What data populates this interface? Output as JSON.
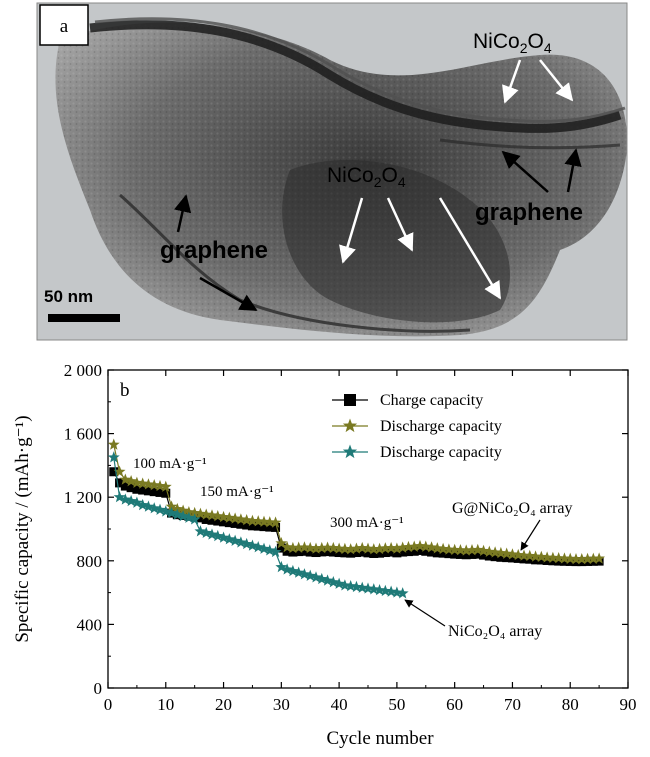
{
  "panel_a": {
    "panel_letter": "a",
    "labels": {
      "nico_top": "NiCo2O4",
      "nico_mid": "NiCo2O4",
      "graphene_left": "graphene",
      "graphene_right": "graphene"
    },
    "scale_bar_text": "50 nm"
  },
  "chart_data": {
    "type": "scatter",
    "panel_letter": "b",
    "xlabel": "Cycle number",
    "ylabel": "Specific capacity / (mAh·g⁻¹)",
    "xlim": [
      0,
      90
    ],
    "ylim": [
      0,
      2000
    ],
    "xticks": [
      "0",
      "10",
      "20",
      "30",
      "40",
      "50",
      "60",
      "70",
      "80",
      "90"
    ],
    "yticks": [
      "0",
      "400",
      "800",
      "1 200",
      "1 600",
      "2 000"
    ],
    "legend_position": "top-right",
    "legend": [
      {
        "label": "Charge capacity",
        "marker": "square",
        "color": "#000000"
      },
      {
        "label": "Discharge capacity",
        "marker": "star",
        "color": "#7a7a22"
      },
      {
        "label": "Discharge capacity",
        "marker": "star",
        "color": "#1f7a78"
      }
    ],
    "annotations": {
      "rate_100": "100 mA·g⁻¹",
      "rate_150": "150 mA·g⁻¹",
      "rate_300": "300 mA·g⁻¹",
      "g_array": "G@NiCo₂O₄ array",
      "n_array": "NiCo₂O₄ array"
    },
    "series": [
      {
        "name": "Charge capacity",
        "marker": "square",
        "color": "#000000",
        "x": [
          1,
          2,
          3,
          4,
          5,
          6,
          7,
          8,
          9,
          10,
          11,
          12,
          13,
          14,
          15,
          16,
          17,
          18,
          19,
          20,
          21,
          22,
          23,
          24,
          25,
          26,
          27,
          28,
          29,
          30,
          31,
          32,
          33,
          34,
          35,
          36,
          37,
          38,
          39,
          40,
          41,
          42,
          43,
          44,
          45,
          46,
          47,
          48,
          49,
          50,
          51,
          52,
          53,
          54,
          55,
          56,
          57,
          58,
          59,
          60,
          61,
          62,
          63,
          64,
          65,
          66,
          67,
          68,
          69,
          70,
          71,
          72,
          73,
          74,
          75,
          76,
          77,
          78,
          79,
          80,
          81,
          82,
          83,
          84,
          85
        ],
        "y": [
          1360,
          1290,
          1270,
          1260,
          1250,
          1245,
          1240,
          1235,
          1230,
          1225,
          1100,
          1090,
          1085,
          1080,
          1075,
          1070,
          1060,
          1055,
          1050,
          1045,
          1040,
          1035,
          1030,
          1025,
          1020,
          1018,
          1015,
          1012,
          1010,
          880,
          860,
          855,
          858,
          860,
          855,
          852,
          856,
          858,
          855,
          852,
          850,
          848,
          852,
          855,
          850,
          846,
          848,
          852,
          855,
          850,
          855,
          858,
          860,
          865,
          860,
          855,
          850,
          848,
          845,
          842,
          840,
          838,
          840,
          842,
          836,
          830,
          826,
          822,
          820,
          818,
          815,
          812,
          810,
          806,
          805,
          802,
          800,
          798,
          797,
          796,
          795,
          795,
          796,
          797,
          798
        ]
      },
      {
        "name": "Discharge capacity",
        "marker": "star",
        "color": "#7a7a22",
        "x": [
          1,
          2,
          3,
          4,
          5,
          6,
          7,
          8,
          9,
          10,
          11,
          12,
          13,
          14,
          15,
          16,
          17,
          18,
          19,
          20,
          21,
          22,
          23,
          24,
          25,
          26,
          27,
          28,
          29,
          30,
          31,
          32,
          33,
          34,
          35,
          36,
          37,
          38,
          39,
          40,
          41,
          42,
          43,
          44,
          45,
          46,
          47,
          48,
          49,
          50,
          51,
          52,
          53,
          54,
          55,
          56,
          57,
          58,
          59,
          60,
          61,
          62,
          63,
          64,
          65,
          66,
          67,
          68,
          69,
          70,
          71,
          72,
          73,
          74,
          75,
          76,
          77,
          78,
          79,
          80,
          81,
          82,
          83,
          84,
          85
        ],
        "y": [
          1530,
          1360,
          1310,
          1300,
          1290,
          1285,
          1280,
          1275,
          1270,
          1265,
          1140,
          1125,
          1115,
          1105,
          1100,
          1095,
          1090,
          1085,
          1080,
          1075,
          1070,
          1065,
          1060,
          1055,
          1050,
          1048,
          1045,
          1042,
          1040,
          910,
          885,
          880,
          882,
          884,
          880,
          876,
          880,
          882,
          880,
          876,
          874,
          872,
          876,
          880,
          876,
          872,
          874,
          878,
          880,
          876,
          882,
          886,
          888,
          892,
          888,
          884,
          878,
          874,
          870,
          868,
          866,
          864,
          866,
          868,
          862,
          856,
          852,
          848,
          844,
          840,
          836,
          832,
          830,
          826,
          824,
          820,
          818,
          816,
          814,
          812,
          810,
          810,
          811,
          812,
          814
        ]
      },
      {
        "name": "Discharge capacity",
        "marker": "star",
        "color": "#1f7a78",
        "x": [
          1,
          2,
          3,
          4,
          5,
          6,
          7,
          8,
          9,
          10,
          11,
          12,
          13,
          14,
          15,
          16,
          17,
          18,
          19,
          20,
          21,
          22,
          23,
          24,
          25,
          26,
          27,
          28,
          29,
          30,
          31,
          32,
          33,
          34,
          35,
          36,
          37,
          38,
          39,
          40,
          41,
          42,
          43,
          44,
          45,
          46,
          47,
          48,
          49,
          50,
          51
        ],
        "y": [
          1450,
          1200,
          1185,
          1175,
          1165,
          1150,
          1140,
          1130,
          1120,
          1110,
          1100,
          1090,
          1080,
          1070,
          1060,
          985,
          975,
          965,
          955,
          945,
          935,
          925,
          915,
          905,
          895,
          885,
          875,
          865,
          855,
          760,
          745,
          735,
          725,
          715,
          705,
          695,
          685,
          675,
          665,
          655,
          645,
          640,
          635,
          630,
          625,
          620,
          615,
          610,
          605,
          600,
          595
        ]
      }
    ]
  }
}
